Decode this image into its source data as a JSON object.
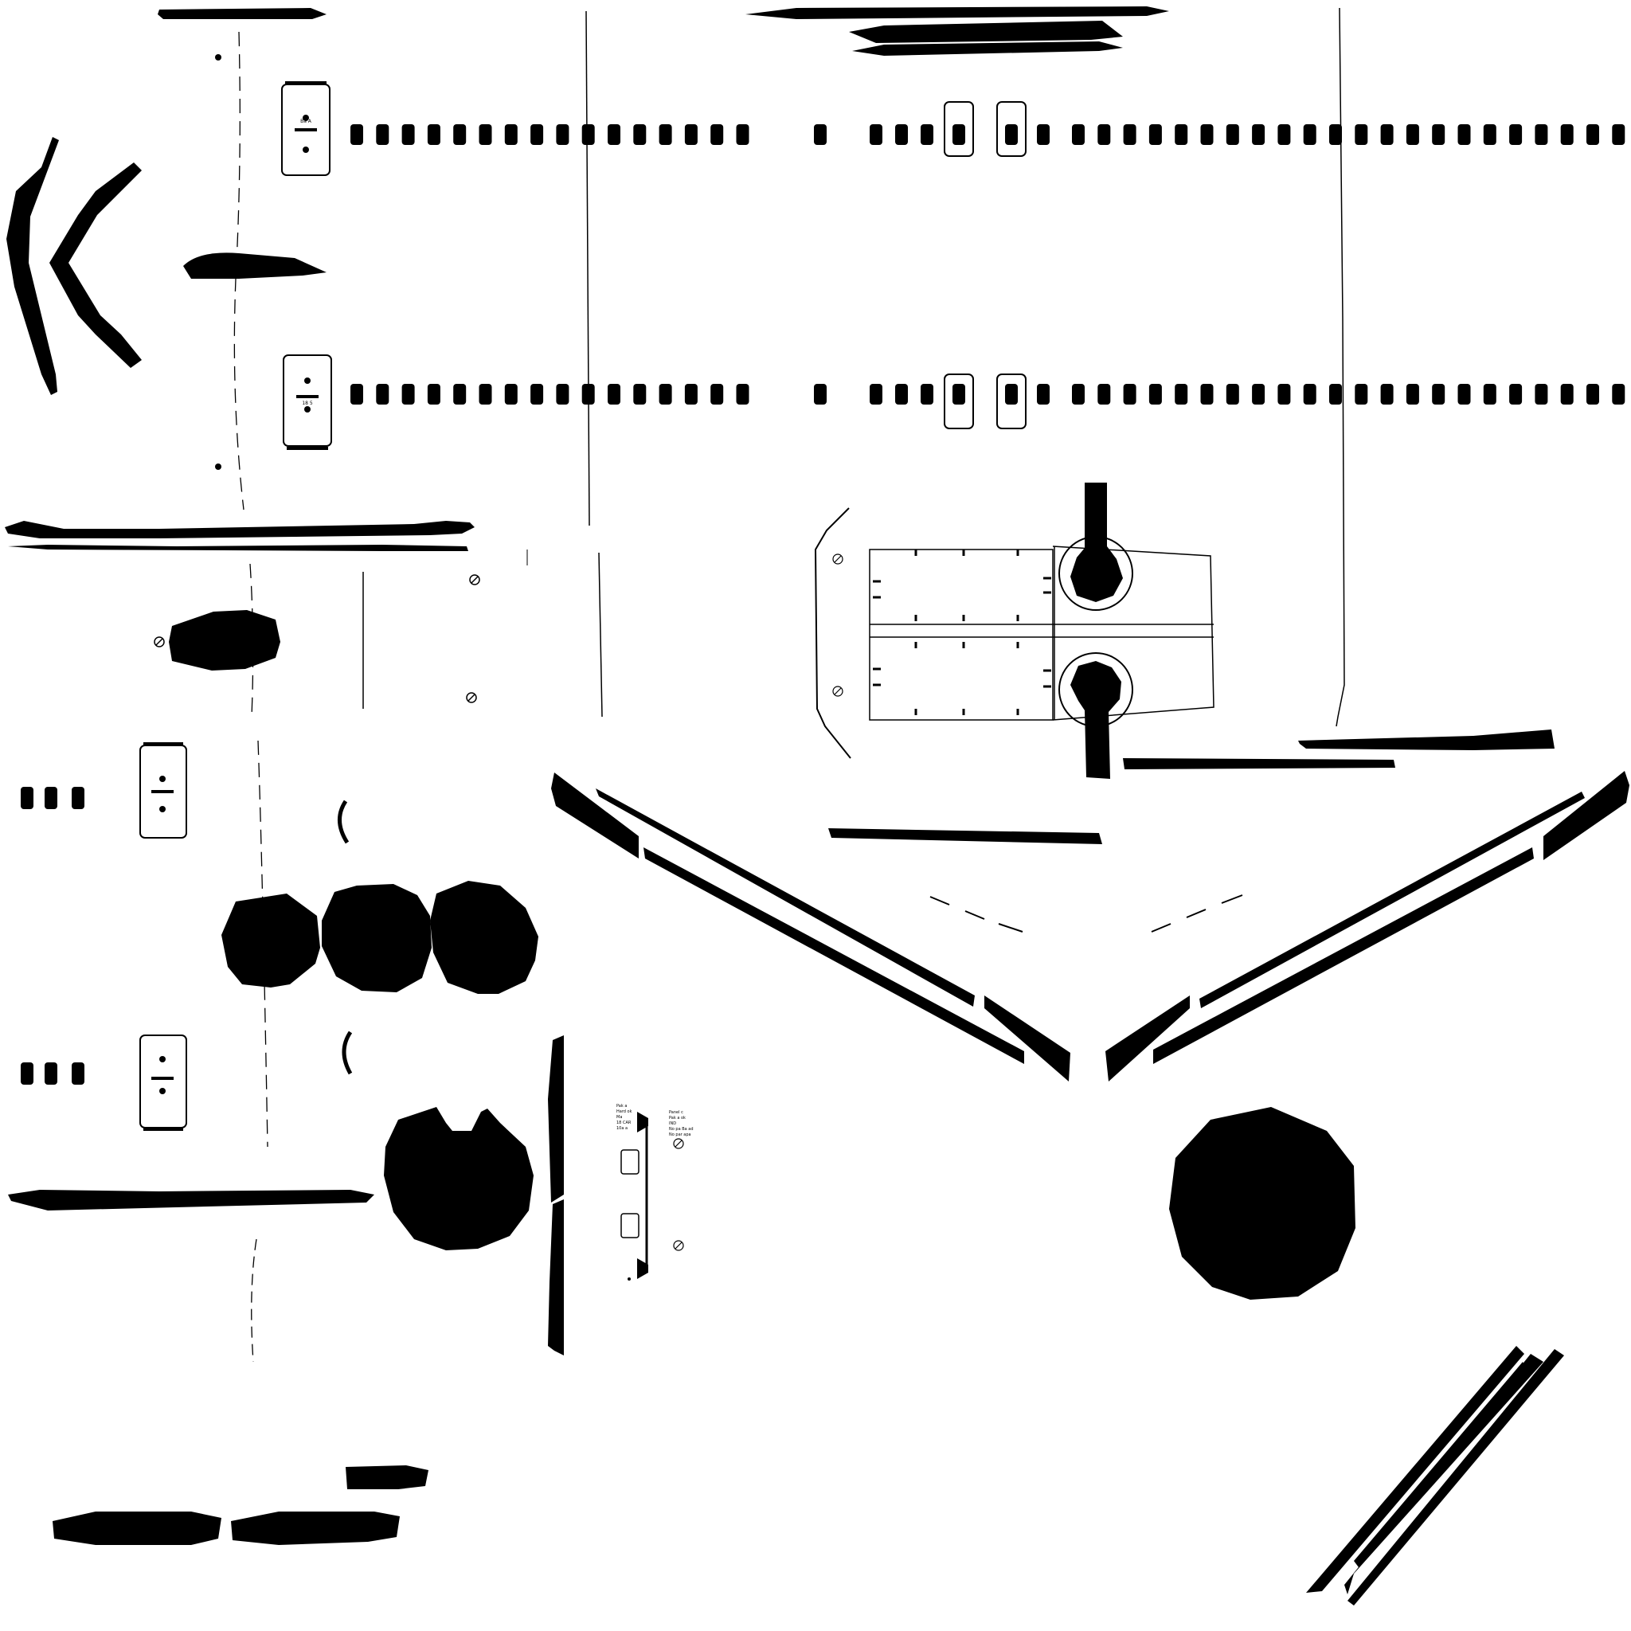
{
  "sheet": {
    "background": "#ffffff",
    "ink": "#000000",
    "panel_labels": {
      "a1": "Ba A",
      "a2": "18 5"
    },
    "placard_lines": [
      "Pak a",
      "Hard ok",
      "Ma",
      "18 CAR",
      "10a a"
    ],
    "placard_right_lines": [
      "Panel c",
      "Pak a ok",
      "IND",
      "No pa Ba ad",
      "No par apa"
    ]
  }
}
